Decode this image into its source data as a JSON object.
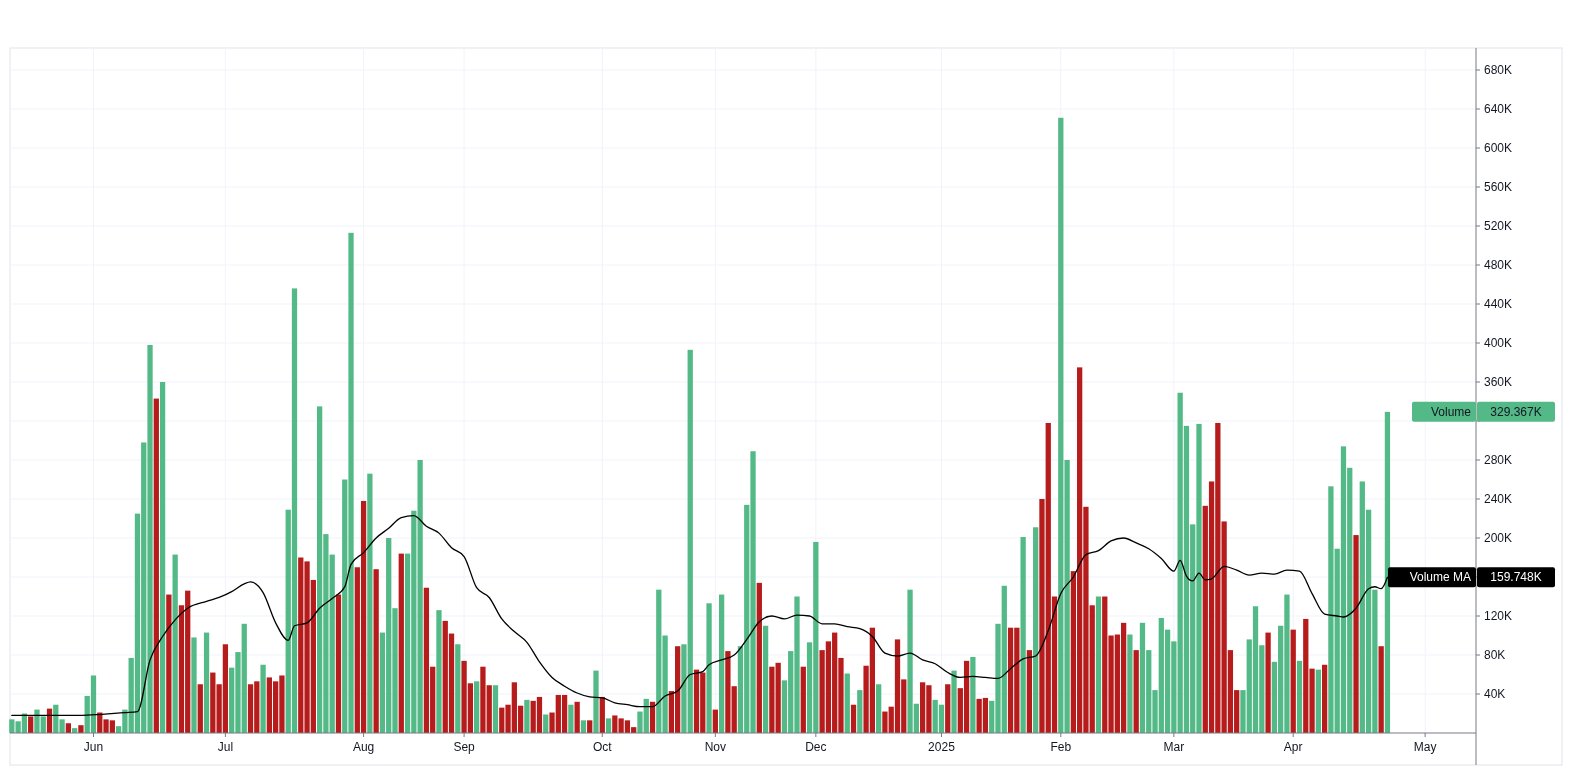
{
  "chart_data": {
    "type": "bar",
    "categories": [
      null,
      null,
      null,
      null,
      null,
      null,
      null,
      null,
      null,
      null,
      null,
      null,
      null,
      "Jun",
      null,
      null,
      null,
      null,
      null,
      null,
      null,
      null,
      null,
      null,
      null,
      null,
      null,
      null,
      null,
      null,
      null,
      null,
      null,
      null,
      "Jul",
      null,
      null,
      null,
      null,
      null,
      null,
      null,
      null,
      null,
      null,
      null,
      null,
      null,
      null,
      null,
      null,
      null,
      null,
      null,
      null,
      null,
      "Aug",
      null,
      null,
      null,
      null,
      null,
      null,
      null,
      null,
      null,
      null,
      null,
      null,
      null,
      null,
      null,
      "Sep",
      null,
      null,
      null,
      null,
      null,
      null,
      null,
      null,
      null,
      null,
      null,
      null,
      null,
      null,
      null,
      null,
      null,
      null,
      null,
      null,
      null,
      "Oct",
      null,
      null,
      null,
      null,
      null,
      null,
      null,
      null,
      null,
      null,
      null,
      null,
      null,
      null,
      null,
      null,
      null,
      "Nov",
      null,
      null,
      null,
      null,
      null,
      null,
      null,
      null,
      null,
      null,
      null,
      null,
      null,
      null,
      null,
      "Dec",
      null,
      null,
      null,
      null,
      null,
      null,
      null,
      null,
      null,
      null,
      null,
      null,
      null,
      null,
      null,
      null,
      null,
      null,
      null,
      "2025",
      null,
      null,
      null,
      null,
      null,
      null,
      null,
      null,
      null,
      null,
      null,
      null,
      null,
      null,
      null,
      null,
      null,
      null,
      "Feb",
      null,
      null,
      null,
      null,
      null,
      null,
      null,
      null,
      null,
      null,
      null,
      null,
      null,
      null,
      null,
      null,
      null,
      "Mar",
      null,
      null,
      null,
      null,
      null,
      null,
      null,
      null,
      null,
      null,
      null,
      null,
      null,
      null,
      null,
      null,
      null,
      null,
      "Apr",
      null,
      null,
      null,
      null,
      null,
      null,
      null,
      null,
      null,
      null,
      null,
      null,
      null,
      null,
      null,
      null,
      null,
      null,
      null,
      null,
      "May",
      null,
      null,
      null,
      null,
      null,
      null,
      null,
      null,
      null
    ],
    "series": [
      {
        "name": "Volume",
        "color": "#53b987",
        "values": [
          14,
          12,
          20,
          17,
          24,
          17,
          25,
          29,
          14,
          10,
          5,
          8,
          38,
          59,
          21,
          14,
          13,
          7,
          24,
          77,
          225,
          298,
          398,
          343,
          360,
          142,
          183,
          131,
          146,
          98,
          50,
          103,
          62,
          50,
          91,
          67,
          83,
          112,
          50,
          53,
          70,
          57,
          53,
          59,
          229,
          456,
          180,
          176,
          157,
          335,
          204,
          183,
          142,
          260,
          513,
          170,
          238,
          266,
          168,
          103,
          200,
          128,
          184,
          184,
          228,
          280,
          149,
          68,
          126,
          115,
          102,
          91,
          74,
          51,
          53,
          68,
          49,
          49,
          26,
          29,
          52,
          28,
          34,
          33,
          37,
          19,
          21,
          39,
          39,
          29,
          32,
          13,
          13,
          64,
          37,
          15,
          18,
          15,
          13,
          6,
          22,
          35,
          32,
          147,
          100,
          43,
          89,
          91,
          393,
          65,
          62,
          133,
          24,
          142,
          84,
          48,
          89,
          234,
          289,
          154,
          110,
          68,
          72,
          54,
          84,
          140,
          68,
          93,
          196,
          85,
          94,
          103,
          77,
          61,
          29,
          44,
          69,
          108,
          50,
          22,
          27,
          96,
          55,
          147,
          30,
          52,
          49,
          34,
          29,
          50,
          64,
          46,
          74,
          78,
          35,
          36,
          33,
          112,
          151,
          108,
          108,
          201,
          85,
          211,
          240,
          318,
          140,
          631,
          280,
          166,
          375,
          232,
          131,
          140,
          140,
          100,
          101,
          113,
          101,
          85,
          113,
          85,
          44,
          118,
          106,
          94,
          349,
          315,
          214,
          317,
          233,
          258,
          318,
          217,
          85,
          44,
          44,
          96,
          130,
          90,
          103,
          73,
          110,
          142,
          106,
          74,
          117,
          66,
          65,
          70,
          253,
          189,
          294,
          272,
          203,
          258,
          229,
          147,
          89,
          329.367,
          null,
          null,
          null,
          null,
          null,
          null,
          null,
          null,
          null,
          null,
          null,
          null,
          null,
          null,
          null
        ],
        "colors": [
          "#53b987",
          "#53b987",
          "#53b987",
          "#b71c1c",
          "#53b987",
          "#53b987",
          "#b71c1c",
          "#53b987",
          "#53b987",
          "#b71c1c",
          "#53b987",
          "#b71c1c",
          "#53b987",
          "#53b987",
          "#b71c1c",
          "#b71c1c",
          "#b71c1c",
          "#53b987",
          "#53b987",
          "#53b987",
          "#53b987",
          "#53b987",
          "#53b987",
          "#b71c1c",
          "#53b987",
          "#b71c1c",
          "#53b987",
          "#b71c1c",
          "#b71c1c",
          "#53b987",
          "#b71c1c",
          "#53b987",
          "#b71c1c",
          "#b71c1c",
          "#b71c1c",
          "#53b987",
          "#53b987",
          "#53b987",
          "#b71c1c",
          "#b71c1c",
          "#53b987",
          "#b71c1c",
          "#b71c1c",
          "#b71c1c",
          "#53b987",
          "#53b987",
          "#b71c1c",
          "#b71c1c",
          "#b71c1c",
          "#53b987",
          "#53b987",
          "#53b987",
          "#b71c1c",
          "#53b987",
          "#53b987",
          "#b71c1c",
          "#b71c1c",
          "#53b987",
          "#b71c1c",
          "#53b987",
          "#53b987",
          "#53b987",
          "#b71c1c",
          "#53b987",
          "#53b987",
          "#53b987",
          "#b71c1c",
          "#b71c1c",
          "#53b987",
          "#b71c1c",
          "#b71c1c",
          "#53b987",
          "#b71c1c",
          "#b71c1c",
          "#53b987",
          "#b71c1c",
          "#b71c1c",
          "#53b987",
          "#b71c1c",
          "#b71c1c",
          "#b71c1c",
          "#b71c1c",
          "#53b987",
          "#b71c1c",
          "#b71c1c",
          "#53b987",
          "#b71c1c",
          "#b71c1c",
          "#b71c1c",
          "#53b987",
          "#b71c1c",
          "#53b987",
          "#b71c1c",
          "#53b987",
          "#b71c1c",
          "#53b987",
          "#b71c1c",
          "#b71c1c",
          "#b71c1c",
          "#b71c1c",
          "#53b987",
          "#53b987",
          "#b71c1c",
          "#53b987",
          "#53b987",
          "#b71c1c",
          "#b71c1c",
          "#53b987",
          "#53b987",
          "#b71c1c",
          "#b71c1c",
          "#53b987",
          "#b71c1c",
          "#53b987",
          "#b71c1c",
          "#b71c1c",
          "#53b987",
          "#53b987",
          "#53b987",
          "#b71c1c",
          "#53b987",
          "#b71c1c",
          "#b71c1c",
          "#53b987",
          "#53b987",
          "#53b987",
          "#b71c1c",
          "#53b987",
          "#53b987",
          "#b71c1c",
          "#b71c1c",
          "#b71c1c",
          "#b71c1c",
          "#53b987",
          "#b71c1c",
          "#53b987",
          "#b71c1c",
          "#b71c1c",
          "#53b987",
          "#b71c1c",
          "#b71c1c",
          "#b71c1c",
          "#b71c1c",
          "#53b987",
          "#53b987",
          "#b71c1c",
          "#b71c1c",
          "#53b987",
          "#53b987",
          "#b71c1c",
          "#53b987",
          "#b71c1c",
          "#b71c1c",
          "#53b987",
          "#b71c1c",
          "#b71c1c",
          "#53b987",
          "#53b987",
          "#53b987",
          "#b71c1c",
          "#b71c1c",
          "#53b987",
          "#b71c1c",
          "#53b987",
          "#b71c1c",
          "#b71c1c",
          "#b71c1c",
          "#53b987",
          "#53b987",
          "#b71c1c",
          "#b71c1c",
          "#b71c1c",
          "#b71c1c",
          "#53b987",
          "#b71c1c",
          "#b71c1c",
          "#b71c1c",
          "#b71c1c",
          "#53b987",
          "#b71c1c",
          "#53b987",
          "#53b987",
          "#53b987",
          "#53b987",
          "#53b987",
          "#53b987",
          "#53b987",
          "#53b987",
          "#53b987",
          "#53b987",
          "#b71c1c",
          "#b71c1c",
          "#b71c1c",
          "#b71c1c",
          "#b71c1c",
          "#b71c1c",
          "#53b987",
          "#53b987",
          "#53b987",
          "#53b987",
          "#b71c1c",
          "#53b987",
          "#53b987",
          "#53b987",
          "#b71c1c",
          "#53b987",
          "#b71c1c",
          "#b71c1c",
          "#53b987",
          "#b71c1c",
          "#53b987",
          "#53b987",
          "#53b987",
          "#53b987",
          "#b71c1c",
          "#53b987",
          "#53b987",
          "#53b987",
          "#b71c1c",
          "#53b987",
          null,
          null,
          null,
          null,
          null,
          null,
          null,
          null,
          null,
          null,
          null,
          null,
          null,
          null,
          null
        ]
      },
      {
        "name": "Volume MA",
        "type": "line",
        "color": "#000000",
        "values": [
          18,
          null,
          null,
          null,
          null,
          null,
          null,
          null,
          null,
          null,
          18,
          null,
          null,
          null,
          null,
          null,
          null,
          null,
          21,
          null,
          22,
          null,
          75,
          null,
          99,
          null,
          116,
          null,
          128,
          null,
          null,
          135,
          null,
          139,
          null,
          145,
          null,
          153,
          155,
          null,
          144,
          null,
          113,
          null,
          95,
          110,
          null,
          113,
          null,
          128,
          null,
          138,
          null,
          150,
          173,
          null,
          185,
          null,
          200,
          null,
          210,
          null,
          221,
          null,
          223,
          null,
          212,
          null,
          205,
          null,
          190,
          null,
          181,
          null,
          149,
          null,
          139,
          null,
          117,
          null,
          104,
          null,
          93,
          null,
          73,
          null,
          57,
          null,
          48,
          null,
          41,
          null,
          37,
          null,
          36,
          null,
          31,
          null,
          29,
          null,
          27,
          null,
          27,
          null,
          38,
          null,
          43,
          null,
          60,
          null,
          63,
          70,
          null,
          75,
          null,
          80,
          null,
          96,
          null,
          114,
          null,
          120,
          null,
          117,
          null,
          121,
          null,
          120,
          null,
          112,
          null,
          112,
          null,
          109,
          null,
          107,
          null,
          99,
          null,
          82,
          null,
          79,
          null,
          82,
          null,
          75,
          null,
          71,
          null,
          62,
          null,
          57,
          null,
          58,
          null,
          57,
          null,
          56,
          null,
          66,
          null,
          76,
          null,
          79,
          null,
          105,
          null,
          143,
          null,
          160,
          null,
          183,
          null,
          187,
          null,
          197,
          null,
          200,
          null,
          195,
          null,
          189,
          null,
          179,
          null,
          166,
          177,
          161,
          156,
          164,
          157,
          158,
          null,
          171,
          null,
          167,
          null,
          162,
          null,
          164,
          null,
          163,
          null,
          167,
          null,
          166,
          null,
          143,
          null,
          122,
          null,
          120,
          119,
          null,
          128,
          null,
          148,
          150,
          148,
          159.748,
          null,
          null,
          null,
          null,
          null,
          null,
          null,
          null,
          null,
          null,
          null,
          null,
          null,
          null,
          null
        ]
      }
    ],
    "ylim": [
      0,
      700
    ],
    "yticks": [
      {
        "value": 40,
        "label": "40K"
      },
      {
        "value": 80,
        "label": "80K"
      },
      {
        "value": 120,
        "label": "120K"
      },
      {
        "value": 160,
        "label": null
      },
      {
        "value": 200,
        "label": "200K"
      },
      {
        "value": 240,
        "label": "240K"
      },
      {
        "value": 280,
        "label": "280K"
      },
      {
        "value": 320,
        "label": null
      },
      {
        "value": 360,
        "label": "360K"
      },
      {
        "value": 400,
        "label": "400K"
      },
      {
        "value": 440,
        "label": "440K"
      },
      {
        "value": 480,
        "label": "480K"
      },
      {
        "value": 520,
        "label": "520K"
      },
      {
        "value": 560,
        "label": "560K"
      },
      {
        "value": 600,
        "label": "600K"
      },
      {
        "value": 640,
        "label": "640K"
      },
      {
        "value": 680,
        "label": "680K"
      }
    ],
    "annotations": [
      "329.367K",
      "159.748K"
    ],
    "grid": true,
    "legend": false
  }
}
